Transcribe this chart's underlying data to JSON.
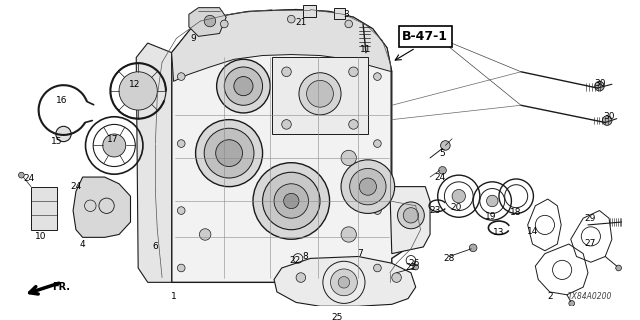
{
  "bg_color": "#ffffff",
  "line_color": "#1a1a1a",
  "diagram_code": "TX84A0200",
  "ref_code": "B-47-1",
  "figsize": [
    6.4,
    3.2
  ],
  "dpi": 100
}
